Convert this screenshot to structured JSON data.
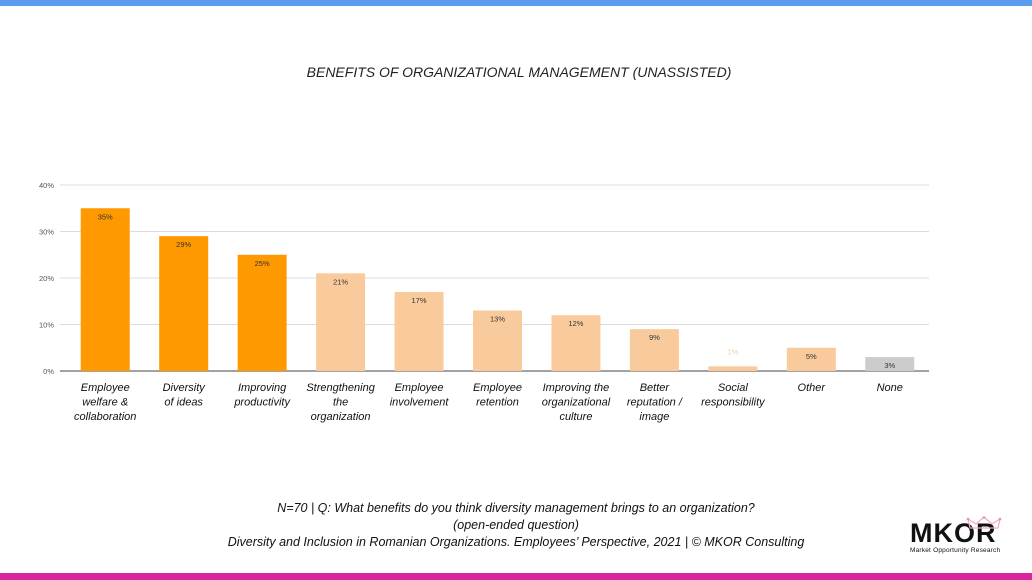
{
  "title": "BENEFITS OF ORGANIZATIONAL MANAGEMENT (UNASSISTED)",
  "footer": {
    "line1": "N=70 | Q: What benefits do you think diversity management brings to an organization?",
    "line2": "(open-ended question)",
    "line3": "Diversity and Inclusion in Romanian Organizations. Employees’ Perspective, 2021 | © MKOR Consulting"
  },
  "logo": {
    "name": "MKOR",
    "tagline": "Market Opportunity Research"
  },
  "colors": {
    "top_bar": "#5b9bf0",
    "bottom_bar": "#d9259e",
    "dark_orange": "#ff9900",
    "light_orange": "#f9cb9c",
    "gray": "#cccccc"
  },
  "chart_data": {
    "type": "bar",
    "title": "BENEFITS OF ORGANIZATIONAL MANAGEMENT (UNASSISTED)",
    "categories": [
      [
        "Employee",
        "welfare &",
        "collaboration"
      ],
      [
        "Diversity",
        "of ideas"
      ],
      [
        "Improving",
        "productivity"
      ],
      [
        "Strengthening",
        "the",
        "organization"
      ],
      [
        "Employee",
        "involvement"
      ],
      [
        "Employee",
        "retention"
      ],
      [
        "Improving the",
        "organizational",
        "culture"
      ],
      [
        "Better",
        "reputation /",
        "image"
      ],
      [
        "Social",
        "responsibility"
      ],
      [
        "Other"
      ],
      [
        "None"
      ]
    ],
    "values": [
      35,
      29,
      25,
      21,
      17,
      13,
      12,
      9,
      1,
      5,
      3
    ],
    "data_labels": [
      "35%",
      "29%",
      "25%",
      "21%",
      "17%",
      "13%",
      "12%",
      "9%",
      "1%",
      "5%",
      "3%"
    ],
    "bar_colors": [
      "#ff9900",
      "#ff9900",
      "#ff9900",
      "#f9cb9c",
      "#f9cb9c",
      "#f9cb9c",
      "#f9cb9c",
      "#f9cb9c",
      "#f9cb9c",
      "#f9cb9c",
      "#cccccc"
    ],
    "y_ticks": [
      "0%",
      "10%",
      "20%",
      "30%",
      "40%"
    ],
    "ylim": [
      0,
      40
    ],
    "grid": true,
    "xlabel": "",
    "ylabel": ""
  }
}
